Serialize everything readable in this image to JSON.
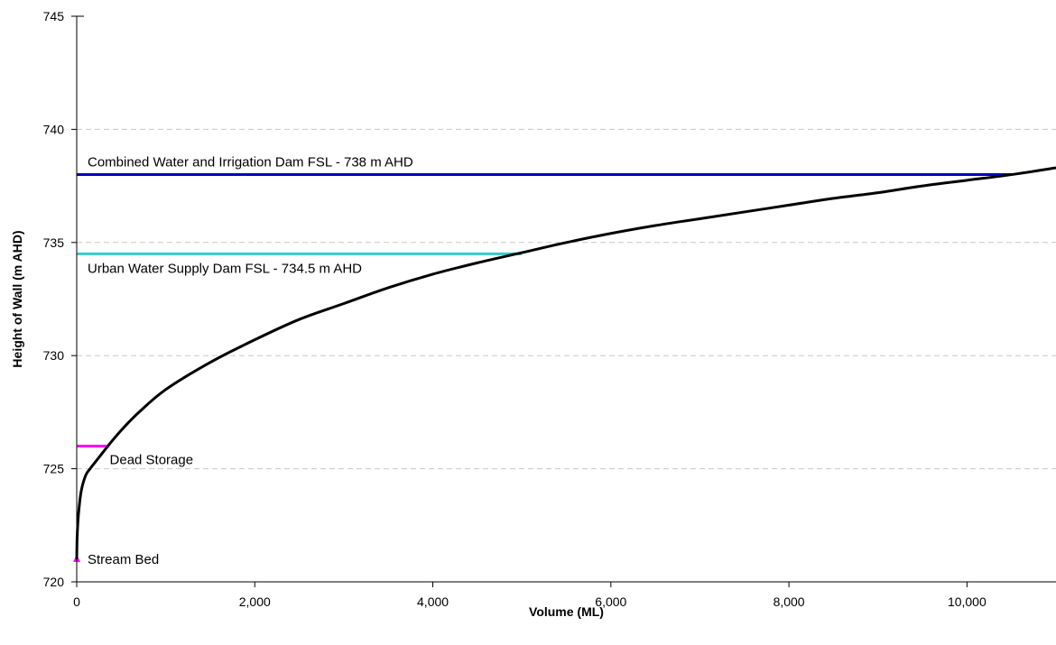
{
  "chart_data": {
    "type": "line",
    "xlabel": "Volume (ML)",
    "ylabel": "Height of Wall (m AHD)",
    "xlim": [
      0,
      11000
    ],
    "ylim": [
      720,
      745
    ],
    "xticks": [
      0,
      2000,
      4000,
      6000,
      8000,
      10000
    ],
    "xtick_labels": [
      "0",
      "2,000",
      "4,000",
      "6,000",
      "8,000",
      "10,000"
    ],
    "yticks": [
      720,
      725,
      730,
      735,
      740,
      745
    ],
    "ytick_labels": [
      "720",
      "725",
      "730",
      "735",
      "740",
      "745"
    ],
    "grid": "horizontal dashed",
    "legend": "none",
    "series": [
      {
        "color": "#000000",
        "x": [
          0,
          5,
          20,
          50,
          100,
          150,
          250,
          350,
          500,
          700,
          1000,
          1500,
          2000,
          2500,
          3000,
          3500,
          4000,
          4500,
          5000,
          5500,
          6000,
          6500,
          7000,
          7500,
          8000,
          8500,
          9000,
          9500,
          10000,
          10500,
          11000
        ],
        "y": [
          721.0,
          722.0,
          723.0,
          724.0,
          724.7,
          725.0,
          725.5,
          726.0,
          726.7,
          727.5,
          728.5,
          729.7,
          730.7,
          731.6,
          732.3,
          733.0,
          733.6,
          734.1,
          734.55,
          735.0,
          735.4,
          735.75,
          736.05,
          736.35,
          736.65,
          736.95,
          737.2,
          737.5,
          737.75,
          738.0,
          738.3
        ]
      }
    ],
    "annotations": [
      {
        "label": "Combined Water and Irrigation Dam FSL - 738 m AHD",
        "y": 738,
        "x_end": 10500,
        "color": "#0000c8",
        "label_position": "above"
      },
      {
        "label": "Urban Water Supply Dam FSL - 734.5 m AHD",
        "y": 734.5,
        "x_end": 5000,
        "color": "#33cccc",
        "label_position": "below"
      },
      {
        "label": "Dead Storage",
        "y": 726,
        "x_end": 350,
        "color": "#ff00ff",
        "label_position": "below-right"
      },
      {
        "label": "Stream Bed",
        "y": 721,
        "x": 0,
        "color": "#ff00ff",
        "marker": "triangle"
      }
    ]
  }
}
